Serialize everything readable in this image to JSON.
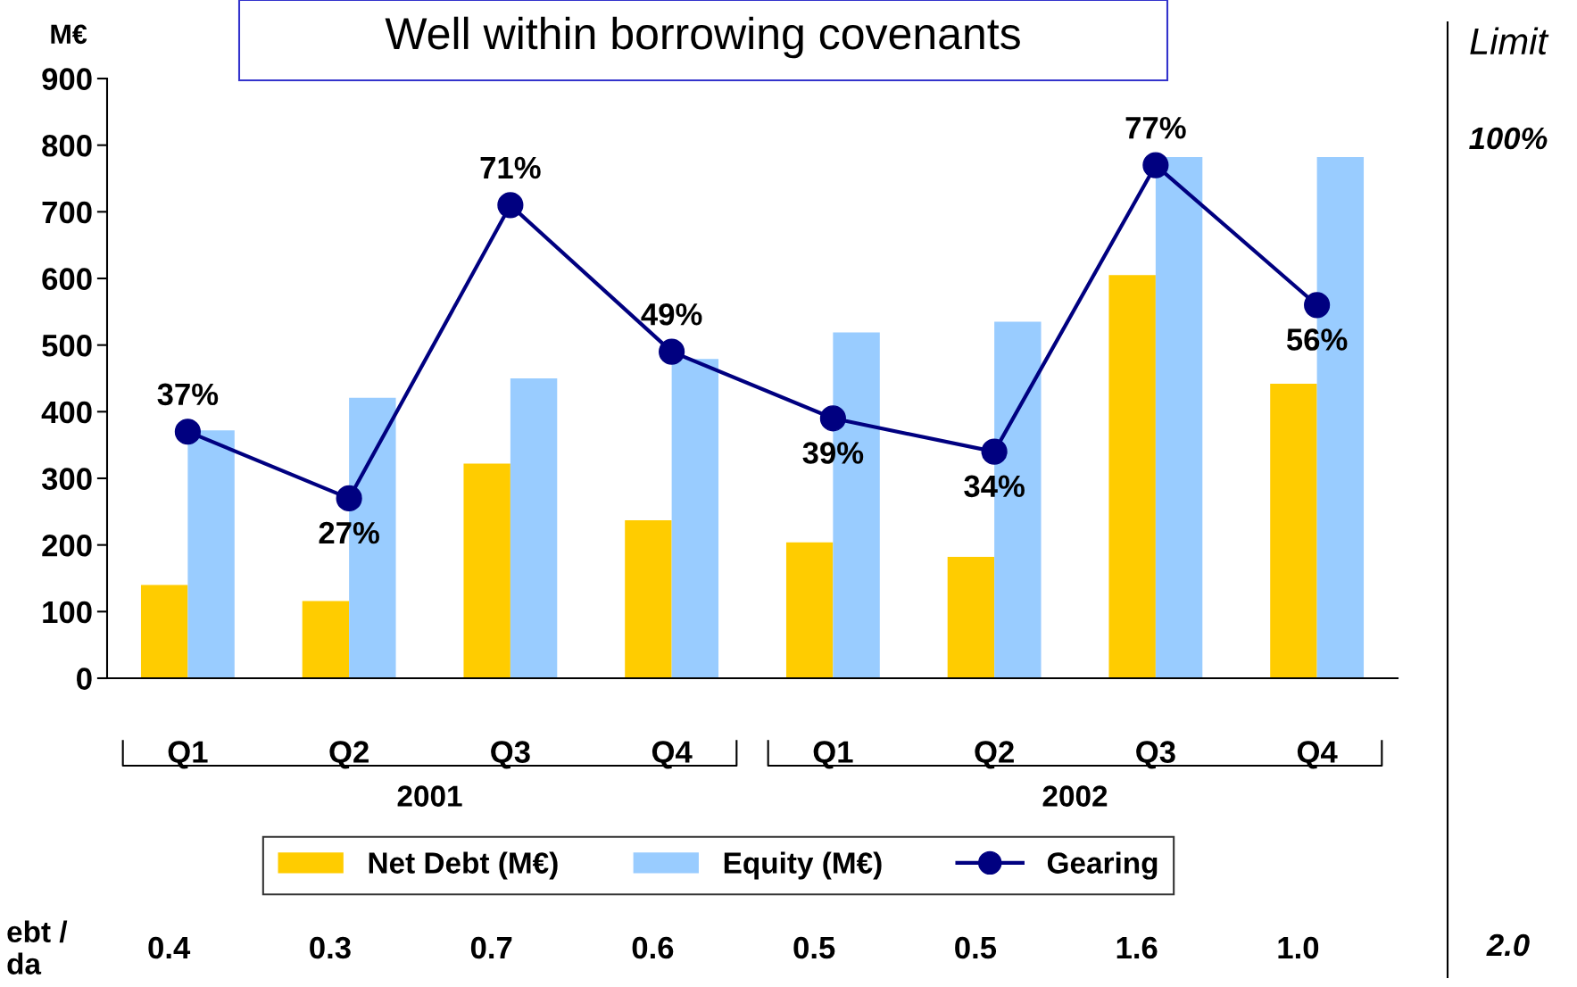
{
  "chart_data": {
    "type": "bar",
    "title": "Well within borrowing covenants",
    "ylabel": "M€",
    "categories": [
      "Q1",
      "Q2",
      "Q3",
      "Q4",
      "Q1",
      "Q2",
      "Q3",
      "Q4"
    ],
    "series": [
      {
        "name": "Net Debt (M€)",
        "color": "#ffcc00",
        "values": [
          140,
          116,
          322,
          237,
          204,
          182,
          605,
          442
        ]
      },
      {
        "name": "Equity (M€)",
        "color": "#99ccff",
        "values": [
          372,
          421,
          450,
          479,
          519,
          535,
          782,
          782
        ]
      },
      {
        "name": "Gearing",
        "type": "line",
        "axis": "y2",
        "color": "#000080",
        "marker": "circle",
        "line_style": "solid",
        "values": [
          37,
          27,
          71,
          49,
          39,
          34,
          77,
          56
        ],
        "value_labels": [
          "37%",
          "27%",
          "71%",
          "49%",
          "39%",
          "34%",
          "77%",
          "56%"
        ]
      }
    ],
    "ylim": [
      0,
      900
    ],
    "yticks": [
      0,
      100,
      200,
      300,
      400,
      500,
      600,
      700,
      800,
      900
    ],
    "y2lim": [
      0,
      90
    ],
    "grid": false,
    "legend": "bottom",
    "annotations": [
      "2001",
      "2002",
      "Limit",
      "100%",
      "ebt /\nda",
      "0.4",
      "0.3",
      "0.7",
      "0.6",
      "0.5",
      "0.5",
      "1.6",
      "1.0",
      "2.0"
    ]
  }
}
